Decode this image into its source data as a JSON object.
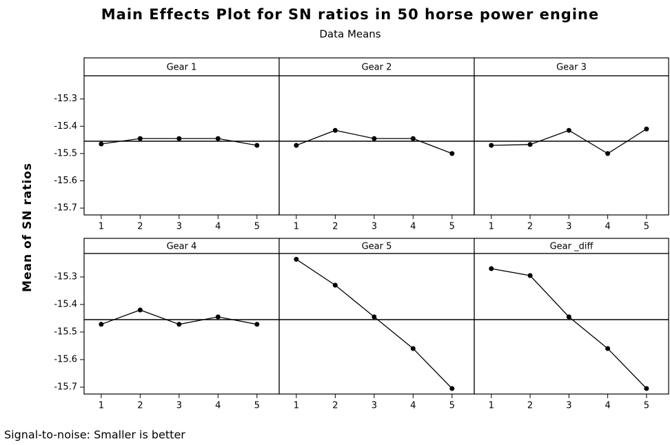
{
  "chart_data": {
    "type": "line",
    "title": "Main Effects Plot for SN ratios in 50 horse power engine",
    "subtitle": "Data Means",
    "ylabel": "Mean of SN ratios",
    "footnote": "Signal-to-noise: Smaller is better",
    "x": [
      1,
      2,
      3,
      4,
      5
    ],
    "xticks": [
      1,
      2,
      3,
      4,
      5
    ],
    "xlim": [
      0.56,
      5.57
    ],
    "ylim": [
      -15.725,
      -15.215
    ],
    "yticks": [
      -15.3,
      -15.4,
      -15.5,
      -15.6,
      -15.7
    ],
    "reference_line": -15.455,
    "color": "#000000",
    "panels": [
      {
        "name": "Gear 1",
        "values": [
          -15.465,
          -15.445,
          -15.445,
          -15.445,
          -15.47
        ]
      },
      {
        "name": "Gear 2",
        "values": [
          -15.47,
          -15.415,
          -15.445,
          -15.445,
          -15.5
        ]
      },
      {
        "name": "Gear 3",
        "values": [
          -15.47,
          -15.467,
          -15.415,
          -15.5,
          -15.41
        ]
      },
      {
        "name": "Gear 4",
        "values": [
          -15.472,
          -15.42,
          -15.472,
          -15.445,
          -15.472
        ]
      },
      {
        "name": "Gear 5",
        "values": [
          -15.236,
          -15.33,
          -15.445,
          -15.56,
          -15.705
        ]
      },
      {
        "name": "Gear _diff",
        "values": [
          -15.27,
          -15.295,
          -15.445,
          -15.56,
          -15.705
        ]
      }
    ]
  }
}
